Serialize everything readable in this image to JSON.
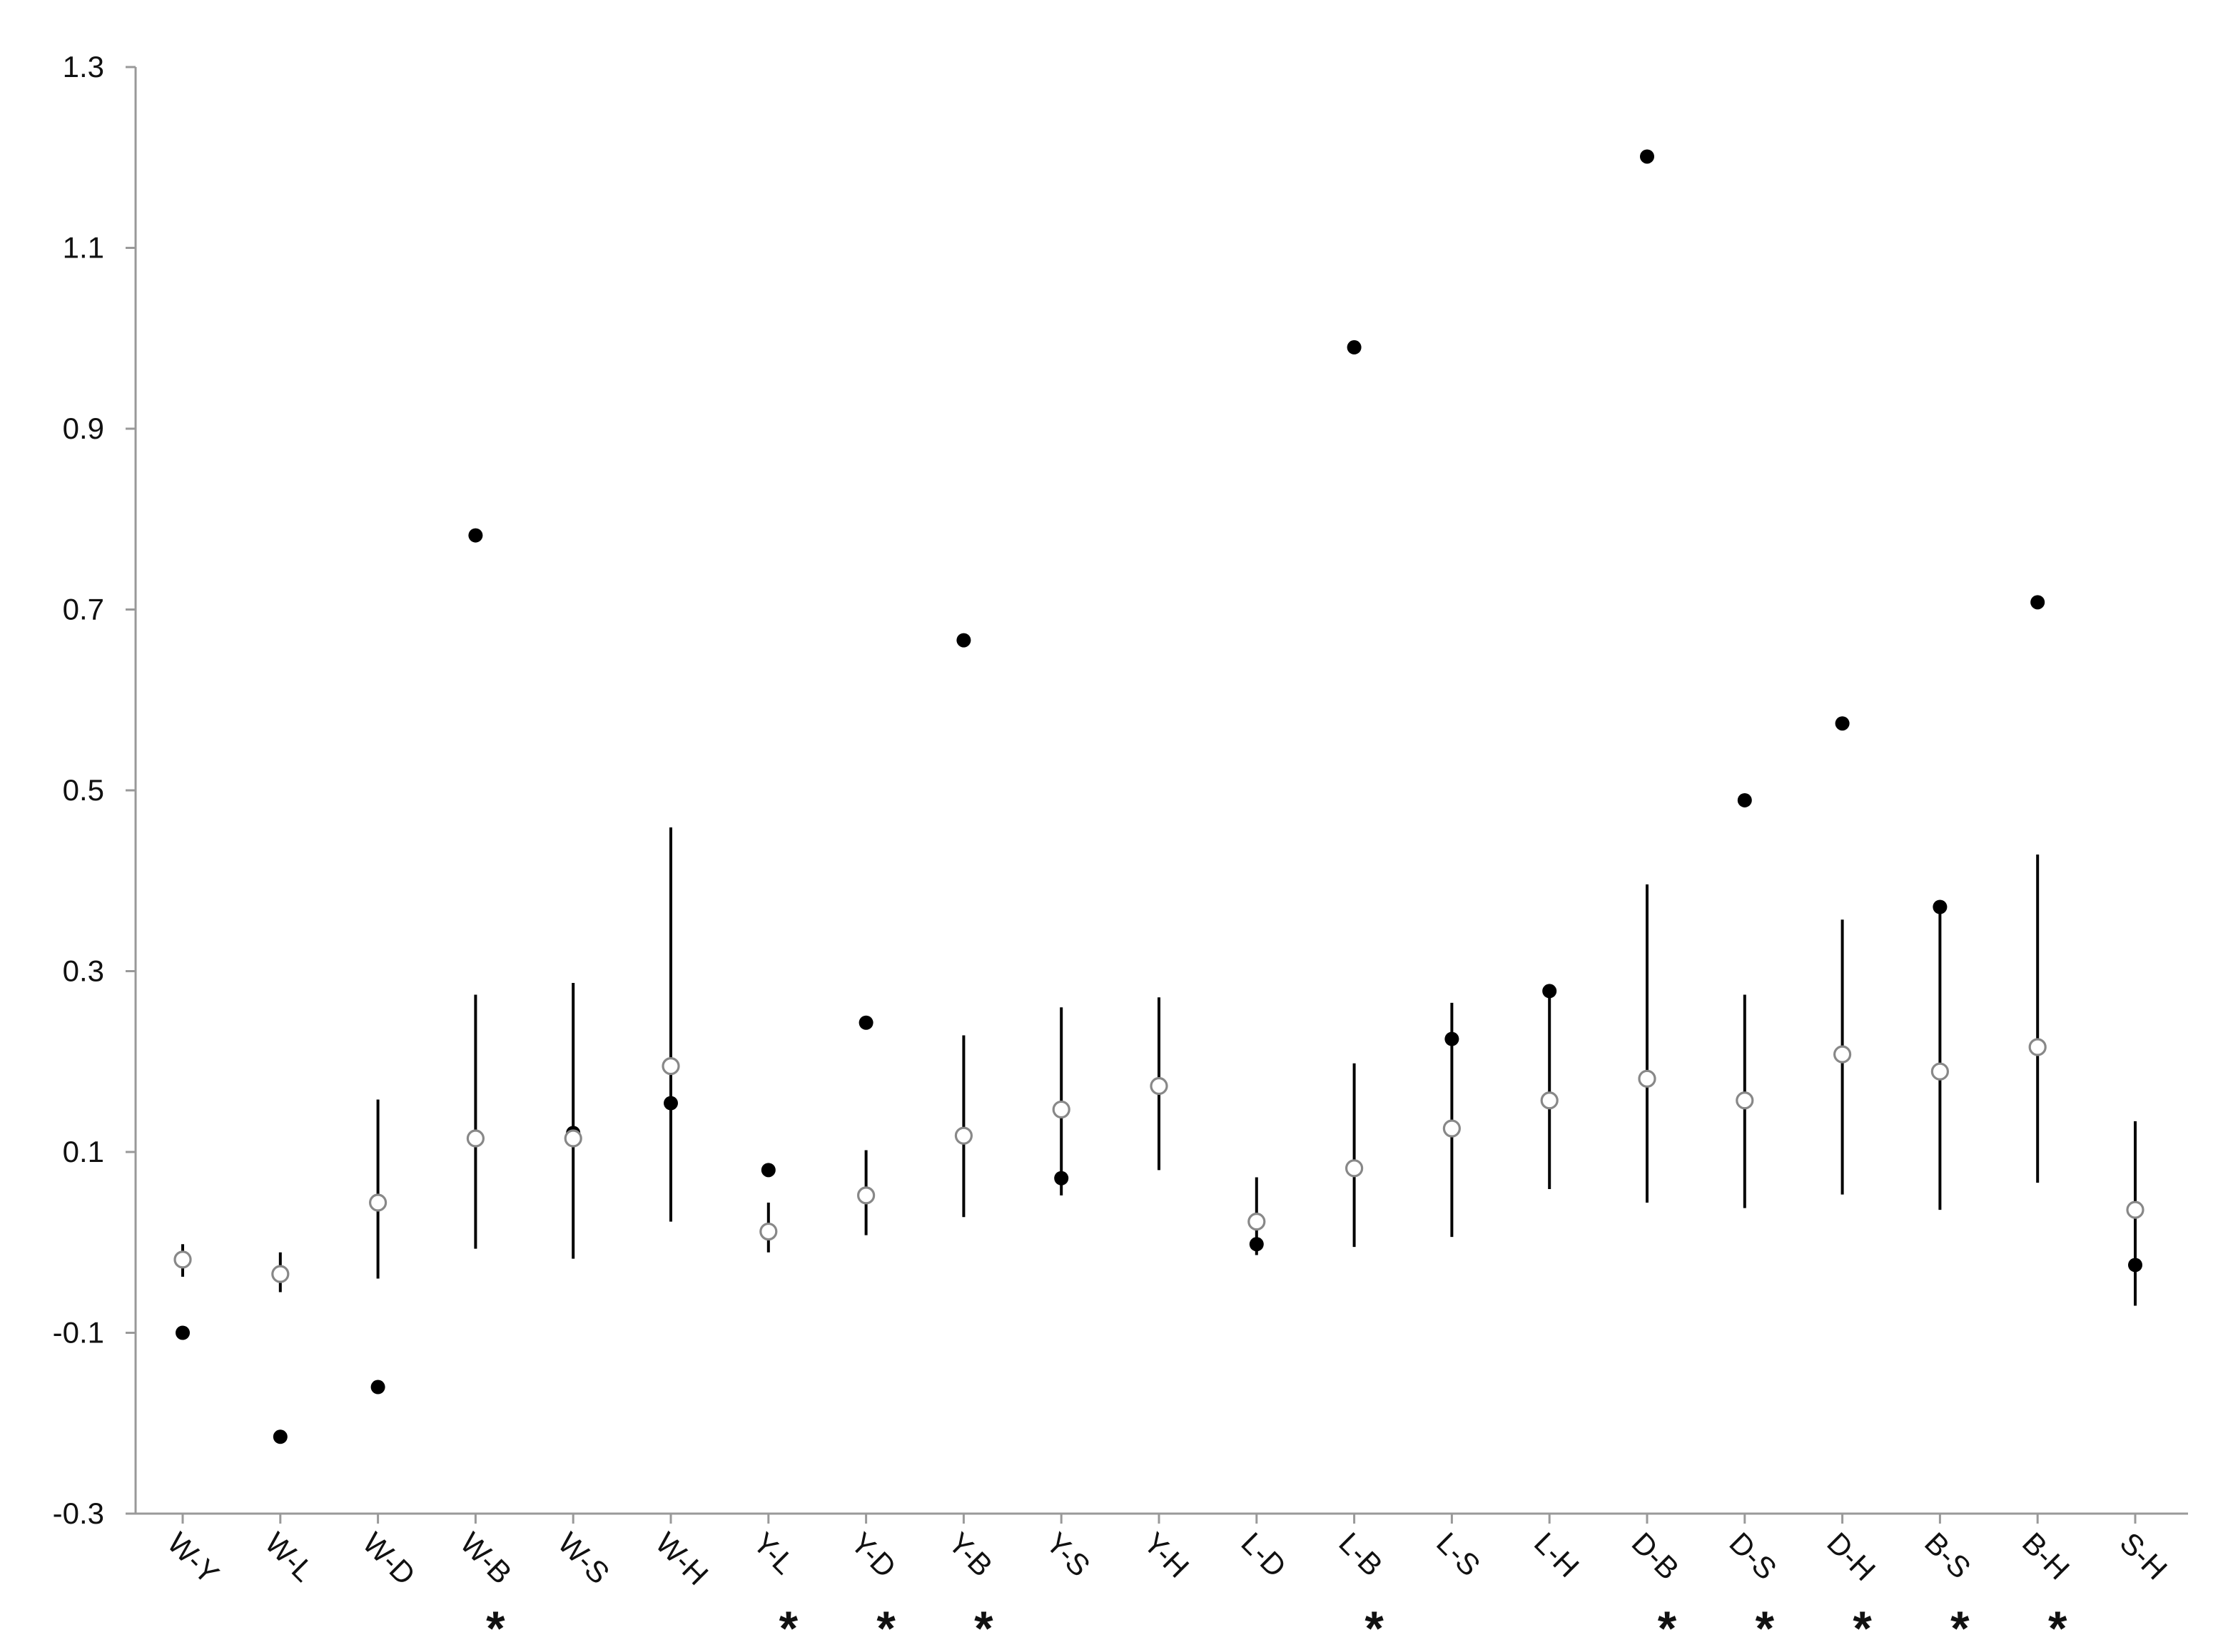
{
  "chart_data": {
    "type": "scatter",
    "categories": [
      "W-Y",
      "W-L",
      "W-D",
      "W-B",
      "W-S",
      "W-H",
      "Y-L",
      "Y-D",
      "Y-B",
      "Y-S",
      "Y-H",
      "L-D",
      "L-B",
      "L-S",
      "L-H",
      "D-B",
      "D-S",
      "D-H",
      "B-S",
      "B-H",
      "S-H"
    ],
    "markers": [
      null,
      null,
      null,
      "*",
      null,
      null,
      "*",
      "*",
      "*",
      null,
      null,
      null,
      "*",
      null,
      null,
      "*",
      "*",
      "*",
      "*",
      "*",
      null
    ],
    "series": [
      {
        "color": "#000000",
        "filled": true,
        "values": [
          -0.1,
          -0.215,
          -0.16,
          0.782,
          0.121,
          0.154,
          0.08,
          0.243,
          0.666,
          0.071,
          0.175,
          -0.002,
          0.99,
          0.225,
          0.278,
          1.201,
          0.489,
          0.574,
          0.371,
          0.708,
          -0.025
        ]
      },
      {
        "color": "#888888",
        "filled": false,
        "values": [
          -0.019,
          -0.035,
          0.044,
          0.115,
          0.115,
          0.195,
          0.012,
          0.052,
          0.118,
          0.147,
          0.173,
          0.023,
          0.082,
          0.126,
          0.157,
          0.181,
          0.157,
          0.208,
          0.189,
          0.216,
          0.036
        ],
        "lower": [
          -0.038,
          -0.055,
          -0.04,
          -0.007,
          -0.018,
          0.023,
          -0.011,
          0.008,
          0.028,
          0.052,
          0.08,
          -0.014,
          -0.005,
          0.006,
          0.059,
          0.044,
          0.038,
          0.053,
          0.036,
          0.066,
          -0.07
        ],
        "upper": [
          -0.002,
          -0.011,
          0.158,
          0.274,
          0.287,
          0.459,
          0.044,
          0.102,
          0.229,
          0.26,
          0.271,
          0.072,
          0.198,
          0.265,
          0.276,
          0.396,
          0.274,
          0.357,
          0.371,
          0.429,
          0.134
        ]
      }
    ],
    "ylim": [
      -0.3,
      1.3
    ],
    "yticks": [
      -0.3,
      -0.1,
      0.1,
      0.3,
      0.5,
      0.7,
      0.9,
      1.1,
      1.3
    ]
  }
}
